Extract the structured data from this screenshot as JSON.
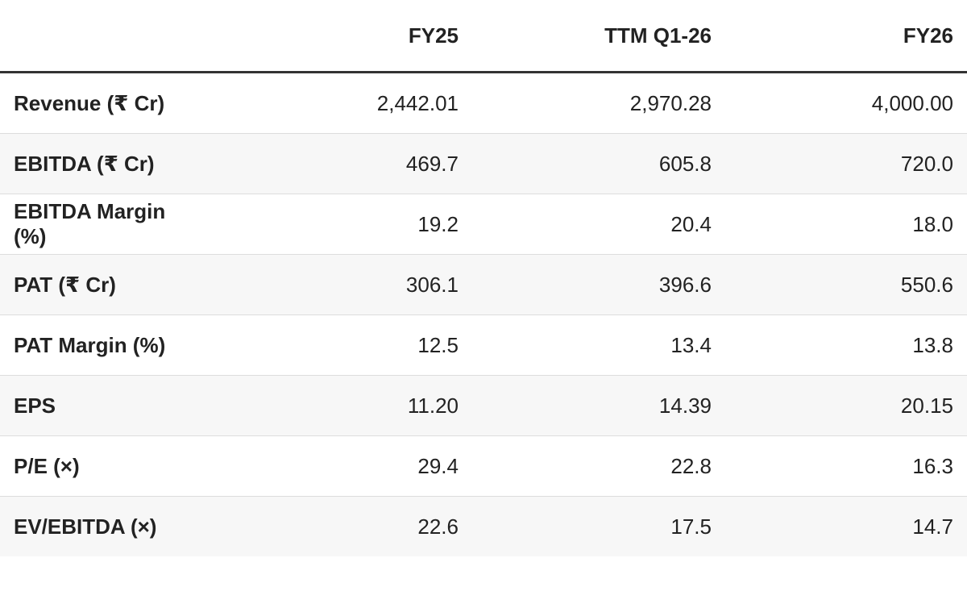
{
  "table": {
    "headers": [
      "FY25",
      "TTM Q1-26",
      "FY26"
    ],
    "rows": [
      [
        "Revenue (₹ Cr)",
        "2,442.01",
        "2,970.28",
        "4,000.00"
      ],
      [
        "EBITDA (₹ Cr)",
        "469.7",
        "605.8",
        "720.0"
      ],
      [
        "EBITDA Margin (%)",
        "19.2",
        "20.4",
        "18.0"
      ],
      [
        "PAT (₹ Cr)",
        "306.1",
        "396.6",
        "550.6"
      ],
      [
        "PAT Margin (%)",
        "12.5",
        "13.4",
        "13.8"
      ],
      [
        "EPS",
        "11.20",
        "14.39",
        "20.15"
      ],
      [
        "P/E (×)",
        "29.4",
        "22.8",
        "16.3"
      ],
      [
        "EV/EBITDA (×)",
        "22.6",
        "17.5",
        "14.7"
      ]
    ]
  }
}
